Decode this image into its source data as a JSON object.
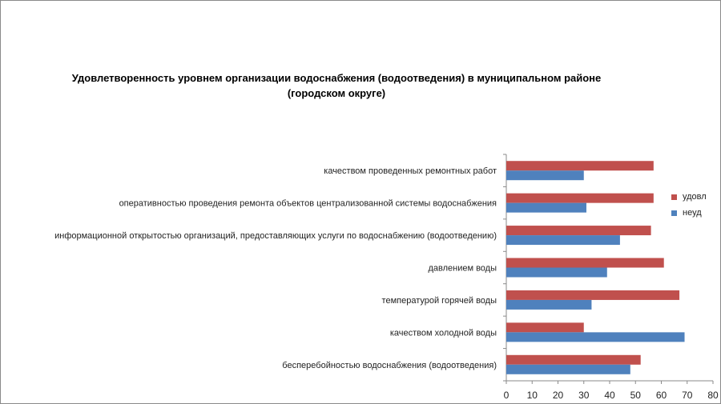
{
  "chart_data": {
    "type": "bar",
    "orientation": "horizontal",
    "title": "Удовлетворенность уровнем организации водоснабжения (водоотведения) в муниципальном районе (городском округе)",
    "title_lines": [
      "Удовлетворенность уровнем организации водоснабжения (водоотведения) в муниципальном районе",
      "(городском округе)"
    ],
    "categories": [
      "качеством проведенных ремонтных работ",
      "оперативностью проведения ремонта объектов централизованной системы водоснабжения",
      "информационной открытостью организаций, предоставляющих услуги по водоснабжению (водоотведению)",
      "давлением воды",
      "температурой горячей воды",
      "качеством холодной воды",
      "бесперебойностью водоснабжения (водоотведения)"
    ],
    "series": [
      {
        "name": "удовл",
        "color": "#c0504d",
        "values": [
          57,
          57,
          56,
          61,
          67,
          30,
          52
        ]
      },
      {
        "name": "неуд",
        "color": "#4f81bd",
        "values": [
          30,
          31,
          44,
          39,
          33,
          69,
          48
        ]
      }
    ],
    "xlim": [
      0,
      80
    ],
    "xticks": [
      0,
      10,
      20,
      30,
      40,
      50,
      60,
      70,
      80
    ],
    "xlabel": "",
    "ylabel": "",
    "grid": false,
    "legend_position": "right"
  }
}
